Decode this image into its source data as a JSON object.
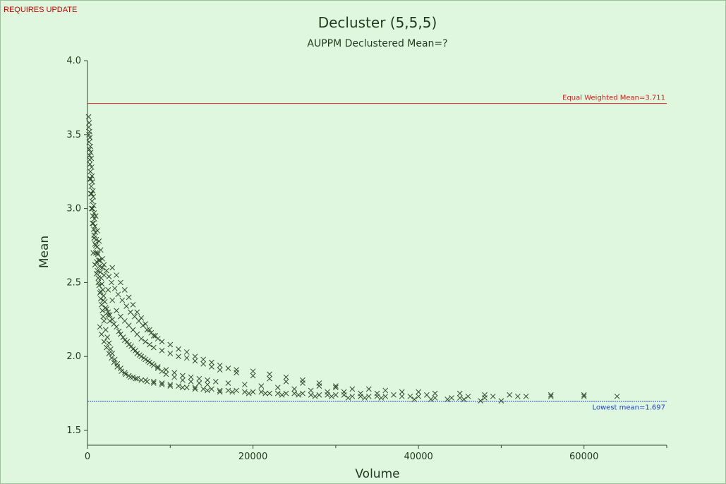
{
  "status_text": "REQUIRES UPDATE",
  "chart_data": {
    "type": "scatter",
    "title": "Decluster (5,5,5)",
    "subtitle": "AUPPM Declustered Mean=?",
    "xlabel": "Volume",
    "ylabel": "Mean",
    "xlim": [
      0,
      70000
    ],
    "ylim": [
      1.4,
      4.0
    ],
    "x_ticks": [
      0,
      20000,
      40000,
      60000
    ],
    "x_tick_labels": [
      "0",
      "20000",
      "40000",
      "60000"
    ],
    "x_minor_ticks": [
      10000,
      30000,
      50000,
      70000
    ],
    "y_ticks": [
      1.5,
      2.0,
      2.5,
      3.0,
      3.5,
      4.0
    ],
    "y_tick_labels": [
      "1.5",
      "2.0",
      "2.5",
      "3.0",
      "3.5",
      "4.0"
    ],
    "grid": false,
    "marker": "x",
    "marker_color": "#2e4a2e",
    "reference_lines": [
      {
        "label": "Equal Weighted Mean=3.711",
        "y": 3.711,
        "color": "#cc2222",
        "style": "solid"
      },
      {
        "label": "Lowest mean=1.697",
        "y": 1.697,
        "color": "#2244cc",
        "style": "dashed"
      }
    ],
    "series": [
      {
        "values": [
          [
            125,
            3.62
          ],
          [
            150,
            3.55
          ],
          [
            175,
            3.5
          ],
          [
            200,
            3.45
          ],
          [
            225,
            3.4
          ],
          [
            250,
            3.36
          ],
          [
            275,
            3.33
          ],
          [
            300,
            3.3
          ],
          [
            350,
            3.25
          ],
          [
            400,
            3.2
          ],
          [
            450,
            3.15
          ],
          [
            500,
            3.1
          ],
          [
            550,
            3.05
          ],
          [
            600,
            3.0
          ],
          [
            650,
            2.95
          ],
          [
            700,
            2.9
          ],
          [
            750,
            2.86
          ],
          [
            800,
            2.82
          ],
          [
            900,
            2.76
          ],
          [
            1000,
            2.7
          ],
          [
            1100,
            2.64
          ],
          [
            1200,
            2.58
          ],
          [
            1300,
            2.53
          ],
          [
            1400,
            2.48
          ],
          [
            1500,
            2.43
          ],
          [
            1600,
            2.39
          ],
          [
            1700,
            2.35
          ],
          [
            1800,
            2.31
          ],
          [
            1900,
            2.27
          ],
          [
            2000,
            2.24
          ],
          [
            2200,
            2.18
          ],
          [
            2400,
            2.13
          ],
          [
            2600,
            2.09
          ],
          [
            2800,
            2.05
          ],
          [
            3000,
            2.02
          ],
          [
            3300,
            1.98
          ],
          [
            3600,
            1.95
          ],
          [
            4000,
            1.92
          ],
          [
            4500,
            1.89
          ],
          [
            5000,
            1.87
          ],
          [
            5500,
            1.86
          ],
          [
            6000,
            1.85
          ],
          [
            7000,
            1.84
          ],
          [
            8000,
            1.83
          ],
          [
            9000,
            1.82
          ],
          [
            10000,
            1.81
          ],
          [
            11000,
            1.8
          ],
          [
            12000,
            1.79
          ],
          [
            13000,
            1.79
          ],
          [
            14000,
            1.78
          ],
          [
            15000,
            1.78
          ],
          [
            16000,
            1.77
          ],
          [
            17000,
            1.77
          ],
          [
            18000,
            1.77
          ],
          [
            19000,
            1.76
          ],
          [
            20000,
            1.76
          ],
          [
            21000,
            1.76
          ],
          [
            22000,
            1.75
          ],
          [
            23000,
            1.75
          ],
          [
            24000,
            1.75
          ],
          [
            25000,
            1.75
          ],
          [
            26000,
            1.75
          ],
          [
            27000,
            1.74
          ],
          [
            28000,
            1.74
          ],
          [
            29000,
            1.74
          ],
          [
            30000,
            1.74
          ],
          [
            31000,
            1.74
          ],
          [
            32000,
            1.73
          ],
          [
            33000,
            1.73
          ],
          [
            34000,
            1.73
          ],
          [
            35000,
            1.73
          ],
          [
            36000,
            1.73
          ],
          [
            38000,
            1.73
          ],
          [
            39000,
            1.73
          ],
          [
            40000,
            1.73
          ],
          [
            42000,
            1.72
          ],
          [
            44000,
            1.72
          ],
          [
            45000,
            1.72
          ],
          [
            48000,
            1.72
          ],
          [
            49000,
            1.73
          ],
          [
            52000,
            1.73
          ],
          [
            56000,
            1.74
          ],
          [
            60000,
            1.74
          ],
          [
            64000,
            1.73
          ],
          [
            300,
            3.2
          ],
          [
            400,
            3.1
          ],
          [
            500,
            3.0
          ],
          [
            600,
            2.9
          ],
          [
            800,
            2.8
          ],
          [
            1000,
            2.75
          ],
          [
            1200,
            2.7
          ],
          [
            1500,
            2.65
          ],
          [
            1800,
            2.6
          ],
          [
            2000,
            2.55
          ],
          [
            2500,
            2.45
          ],
          [
            3000,
            2.38
          ],
          [
            3500,
            2.31
          ],
          [
            4000,
            2.27
          ],
          [
            4500,
            2.24
          ],
          [
            5000,
            2.21
          ],
          [
            5500,
            2.18
          ],
          [
            6000,
            2.15
          ],
          [
            6500,
            2.12
          ],
          [
            7000,
            2.1
          ],
          [
            7500,
            2.08
          ],
          [
            8000,
            2.06
          ],
          [
            9000,
            2.04
          ],
          [
            10000,
            2.02
          ],
          [
            11000,
            2.0
          ],
          [
            12000,
            1.99
          ],
          [
            13000,
            1.97
          ],
          [
            14000,
            1.95
          ],
          [
            15000,
            1.93
          ],
          [
            16000,
            1.91
          ],
          [
            18000,
            1.89
          ],
          [
            20000,
            1.87
          ],
          [
            22000,
            1.85
          ],
          [
            24000,
            1.83
          ],
          [
            26000,
            1.82
          ],
          [
            28000,
            1.8
          ],
          [
            30000,
            1.79
          ],
          [
            32000,
            1.78
          ],
          [
            34000,
            1.78
          ],
          [
            36000,
            1.77
          ],
          [
            38000,
            1.76
          ],
          [
            40000,
            1.76
          ],
          [
            42000,
            1.75
          ],
          [
            45000,
            1.75
          ],
          [
            48000,
            1.74
          ],
          [
            51000,
            1.74
          ],
          [
            56000,
            1.73
          ],
          [
            60000,
            1.73
          ],
          [
            700,
            2.7
          ],
          [
            900,
            2.62
          ],
          [
            1100,
            2.56
          ],
          [
            1300,
            2.5
          ],
          [
            1600,
            2.44
          ],
          [
            1900,
            2.38
          ],
          [
            2200,
            2.33
          ],
          [
            2700,
            2.28
          ],
          [
            3200,
            2.22
          ],
          [
            3800,
            2.17
          ],
          [
            4300,
            2.13
          ],
          [
            4800,
            2.1
          ],
          [
            5300,
            2.07
          ],
          [
            5800,
            2.04
          ],
          [
            6300,
            2.01
          ],
          [
            6800,
            1.99
          ],
          [
            7300,
            1.97
          ],
          [
            7800,
            1.95
          ],
          [
            8500,
            1.93
          ],
          [
            9500,
            1.91
          ],
          [
            10500,
            1.89
          ],
          [
            11500,
            1.87
          ],
          [
            12500,
            1.86
          ],
          [
            13500,
            1.85
          ],
          [
            14500,
            1.84
          ],
          [
            15500,
            1.83
          ],
          [
            17000,
            1.82
          ],
          [
            19000,
            1.81
          ],
          [
            21000,
            1.8
          ],
          [
            23000,
            1.79
          ],
          [
            25000,
            1.78
          ],
          [
            27000,
            1.77
          ],
          [
            29000,
            1.76
          ],
          [
            31000,
            1.76
          ],
          [
            33000,
            1.75
          ],
          [
            35000,
            1.75
          ],
          [
            37000,
            1.74
          ],
          [
            41000,
            1.74
          ],
          [
            46000,
            1.73
          ],
          [
            53000,
            1.73
          ],
          [
            1500,
            2.2
          ],
          [
            1700,
            2.15
          ],
          [
            2000,
            2.1
          ],
          [
            2300,
            2.06
          ],
          [
            2600,
            2.02
          ],
          [
            2900,
            1.99
          ],
          [
            3200,
            1.96
          ],
          [
            3600,
            1.93
          ],
          [
            4100,
            1.9
          ],
          [
            4600,
            1.88
          ],
          [
            5200,
            1.86
          ],
          [
            5800,
            1.85
          ],
          [
            6500,
            1.84
          ],
          [
            7200,
            1.83
          ],
          [
            8000,
            1.82
          ],
          [
            9000,
            1.81
          ],
          [
            10000,
            1.8
          ],
          [
            11500,
            1.79
          ],
          [
            13000,
            1.78
          ],
          [
            14500,
            1.77
          ],
          [
            16000,
            1.76
          ],
          [
            17500,
            1.76
          ],
          [
            19500,
            1.75
          ],
          [
            21500,
            1.75
          ],
          [
            23500,
            1.74
          ],
          [
            25500,
            1.74
          ],
          [
            27500,
            1.73
          ],
          [
            29500,
            1.73
          ],
          [
            31500,
            1.72
          ],
          [
            33500,
            1.72
          ],
          [
            35500,
            1.72
          ],
          [
            39500,
            1.71
          ],
          [
            41500,
            1.71
          ],
          [
            43500,
            1.71
          ],
          [
            45500,
            1.71
          ],
          [
            47500,
            1.7
          ],
          [
            50000,
            1.7
          ],
          [
            2500,
            2.3
          ],
          [
            3000,
            2.25
          ],
          [
            3500,
            2.2
          ],
          [
            4000,
            2.15
          ],
          [
            4500,
            2.11
          ],
          [
            5000,
            2.08
          ],
          [
            5500,
            2.05
          ],
          [
            6000,
            2.02
          ],
          [
            6500,
            2.0
          ],
          [
            7000,
            1.98
          ],
          [
            7500,
            1.96
          ],
          [
            8000,
            1.94
          ],
          [
            8500,
            1.92
          ],
          [
            9000,
            1.9
          ],
          [
            9500,
            1.88
          ],
          [
            10500,
            1.86
          ],
          [
            11500,
            1.84
          ],
          [
            12500,
            1.83
          ],
          [
            13500,
            1.82
          ],
          [
            14500,
            1.81
          ],
          [
            3000,
            2.6
          ],
          [
            3500,
            2.55
          ],
          [
            4000,
            2.5
          ],
          [
            4500,
            2.45
          ],
          [
            5000,
            2.4
          ],
          [
            5500,
            2.35
          ],
          [
            6000,
            2.3
          ],
          [
            6500,
            2.26
          ],
          [
            7000,
            2.22
          ],
          [
            7500,
            2.18
          ],
          [
            8000,
            2.14
          ],
          [
            8500,
            2.12
          ],
          [
            9000,
            2.1
          ],
          [
            10000,
            2.08
          ],
          [
            11000,
            2.05
          ],
          [
            12000,
            2.03
          ],
          [
            13000,
            2.0
          ],
          [
            14000,
            1.98
          ],
          [
            15000,
            1.96
          ],
          [
            16000,
            1.94
          ],
          [
            17000,
            1.92
          ],
          [
            18000,
            1.91
          ],
          [
            20000,
            1.9
          ],
          [
            22000,
            1.88
          ],
          [
            24000,
            1.86
          ],
          [
            26000,
            1.84
          ],
          [
            28000,
            1.82
          ],
          [
            30000,
            1.8
          ],
          [
            1000,
            2.95
          ],
          [
            1200,
            2.85
          ],
          [
            1400,
            2.78
          ],
          [
            1600,
            2.72
          ],
          [
            1800,
            2.66
          ],
          [
            2000,
            2.62
          ],
          [
            2300,
            2.58
          ],
          [
            2600,
            2.54
          ],
          [
            2900,
            2.5
          ],
          [
            3300,
            2.46
          ],
          [
            3700,
            2.42
          ],
          [
            4200,
            2.38
          ],
          [
            4700,
            2.34
          ],
          [
            5200,
            2.3
          ],
          [
            5700,
            2.27
          ],
          [
            6200,
            2.24
          ],
          [
            6700,
            2.21
          ],
          [
            7200,
            2.18
          ],
          [
            7700,
            2.16
          ],
          [
            8200,
            2.14
          ],
          [
            200,
            3.58
          ],
          [
            250,
            3.52
          ],
          [
            300,
            3.48
          ],
          [
            350,
            3.42
          ],
          [
            400,
            3.38
          ],
          [
            450,
            3.34
          ],
          [
            500,
            3.28
          ],
          [
            550,
            3.22
          ],
          [
            600,
            3.18
          ],
          [
            650,
            3.12
          ],
          [
            700,
            3.08
          ],
          [
            750,
            3.02
          ],
          [
            800,
            2.97
          ],
          [
            850,
            2.93
          ],
          [
            900,
            2.88
          ],
          [
            950,
            2.84
          ],
          [
            1050,
            2.79
          ],
          [
            1150,
            2.74
          ],
          [
            1250,
            2.69
          ],
          [
            1350,
            2.65
          ],
          [
            1450,
            2.61
          ],
          [
            1550,
            2.57
          ],
          [
            1650,
            2.53
          ],
          [
            1750,
            2.49
          ],
          [
            1850,
            2.45
          ],
          [
            1950,
            2.41
          ],
          [
            2100,
            2.37
          ],
          [
            2300,
            2.32
          ],
          [
            2500,
            2.28
          ],
          [
            2700,
            2.24
          ]
        ]
      }
    ]
  }
}
